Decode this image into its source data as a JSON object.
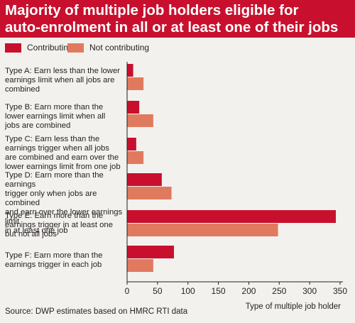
{
  "title": "Majority of multiple job holders eligible for\nauto-enrolment in all or at least one of their jobs",
  "colors": {
    "title_bg": "#c8102e",
    "contributing": "#c8102e",
    "not_contributing": "#e07a5f",
    "background": "#f3f1ee"
  },
  "source": "Source: DWP estimates based on HMRC RTI data",
  "chart_data": {
    "type": "bar",
    "orientation": "horizontal",
    "title": "Majority of multiple job holders eligible for auto-enrolment in all or at least one of their jobs",
    "categories": [
      "Type A: Earn less than the lower earnings limit when all jobs are combined",
      "Type B: Earn more than the lower earnings limit when all jobs are combined",
      "Type C: Earn less than the earnings trigger when all jobs are combined and earn over the lower earnings limit from one job",
      "Type D: Earn more than the earnings trigger only when jobs are combined and earn over the lower earnings limit in at least one job",
      "Type E: Earn more than the earnings trigger in at least one but not all jobs",
      "Type F: Earn more than the earnings trigger in each job"
    ],
    "category_display": [
      "Type A: Earn less than the lower\nearnings limit when all jobs are\ncombined",
      "Type B: Earn more than the\nlower earnings limit when all\njobs are combined",
      "Type C: Earn less than the\nearnings trigger when all jobs\nare combined and earn over the\nlower earnings limit from one job",
      "Type D: Earn more than the earnings\ntrigger only when jobs are combined\nand earn over the lower earnings limit\nin at least one job",
      "Type E: Earn more than the\nearnings trigger in at least one\nbut not all jobs",
      "Type F: Earn more than the\nearnings trigger in each job"
    ],
    "series": [
      {
        "name": "Contributing",
        "color": "#c8102e",
        "values": [
          10,
          20,
          15,
          57,
          343,
          77
        ]
      },
      {
        "name": "Not contributing",
        "color": "#e07a5f",
        "values": [
          27,
          43,
          27,
          73,
          248,
          43
        ]
      }
    ],
    "xlabel": "Type of multiple job holder",
    "ylabel": "",
    "xlim": [
      0,
      350
    ],
    "xticks": [
      0,
      50,
      100,
      150,
      200,
      250,
      300,
      350
    ],
    "grid": false,
    "legend": "top-left"
  }
}
